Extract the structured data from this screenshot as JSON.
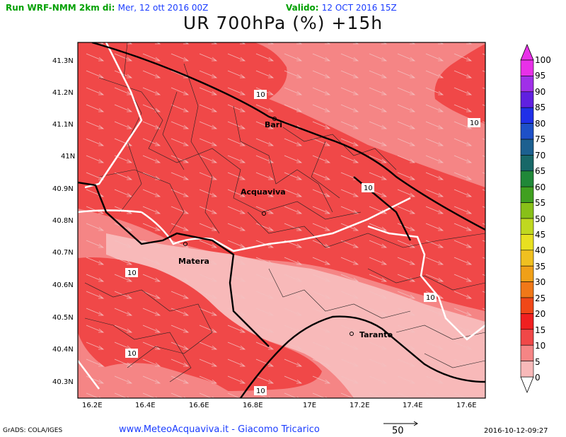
{
  "header": {
    "run_label": "Run WRF-NMM 2km di:",
    "run_date": "Mer, 12 ott 2016 00Z",
    "valid_label": "Valido:",
    "valid_date": "12 OCT 2016 15Z"
  },
  "title": "UR 700hPa (%) +15h",
  "map": {
    "lat_ticks": [
      "41.3N",
      "41.2N",
      "41.1N",
      "41N",
      "40.9N",
      "40.8N",
      "40.7N",
      "40.6N",
      "40.5N",
      "40.4N",
      "40.3N"
    ],
    "lon_ticks": [
      "16.2E",
      "16.4E",
      "16.6E",
      "16.8E",
      "17E",
      "17.2E",
      "17.4E",
      "17.6E"
    ],
    "cities": [
      "Bari",
      "Acquaviva",
      "Matera",
      "Taranto"
    ],
    "contour_labels": [
      "10",
      "10",
      "10",
      "10",
      "10",
      "10",
      "10"
    ],
    "colors": {
      "band_10_15": "#f04848",
      "band_5_10": "#f58585",
      "band_0_5": "#f8b9b9"
    }
  },
  "colorbar": {
    "labels": [
      "100",
      "95",
      "90",
      "85",
      "80",
      "75",
      "70",
      "65",
      "60",
      "55",
      "50",
      "45",
      "40",
      "35",
      "30",
      "25",
      "20",
      "15",
      "10",
      "5",
      "0"
    ],
    "colors": [
      "#e830e8",
      "#a030e8",
      "#6020e0",
      "#2030e8",
      "#1e50c8",
      "#1c6090",
      "#186868",
      "#208838",
      "#40a020",
      "#88c018",
      "#c0d820",
      "#e8e020",
      "#f0c020",
      "#f0a018",
      "#f07818",
      "#f04818",
      "#f02020",
      "#f04848",
      "#f58585",
      "#f8b9b9"
    ]
  },
  "footer": {
    "grads": "GrADS: COLA/IGES",
    "site": "www.MeteoAcquaviva.it  -  Giacomo Tricarico",
    "vector_ref": "50",
    "timestamp": "2016-10-12-09:27"
  }
}
